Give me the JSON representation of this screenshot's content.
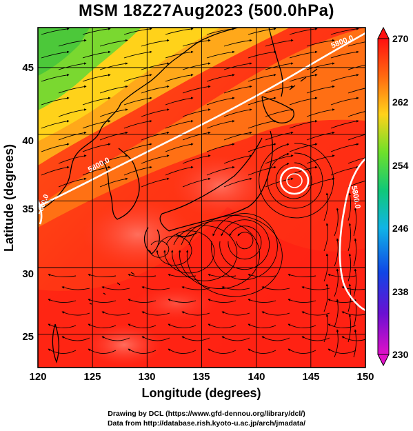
{
  "title": "MSM 18Z27Aug2023 (500.0hPa)",
  "map": {
    "extent": {
      "lon": [
        120,
        150
      ],
      "lat": [
        22.5,
        48
      ]
    },
    "xlabel": "Longitude (degrees)",
    "ylabel": "Latitude  (degrees)",
    "xticks": [
      "120",
      "125",
      "130",
      "135",
      "140",
      "145",
      "150"
    ],
    "yticks": [
      "25",
      "30",
      "35",
      "40",
      "45"
    ],
    "field": "temperature (K), shaded",
    "contour_labels": [
      "5800.0",
      "5800.0",
      "5800.0",
      "5800.0"
    ],
    "vector_field": "wind streamlines"
  },
  "colorbar": {
    "range": [
      230,
      270
    ],
    "labels": [
      "270",
      "262",
      "254",
      "246",
      "238",
      "230"
    ]
  },
  "colors": {
    "warm": "#ff3a14",
    "hot": "#ff1e10",
    "orange": "#ff8a14",
    "yellow": "#ffd21a",
    "green": "#5ad232"
  },
  "credits": {
    "line1": "Drawing by DCL (https://www.gfd-dennou.org/library/dcl/)",
    "line2": "Data from http://database.rish.kyoto-u.ac.jp/arch/jmadata/"
  }
}
